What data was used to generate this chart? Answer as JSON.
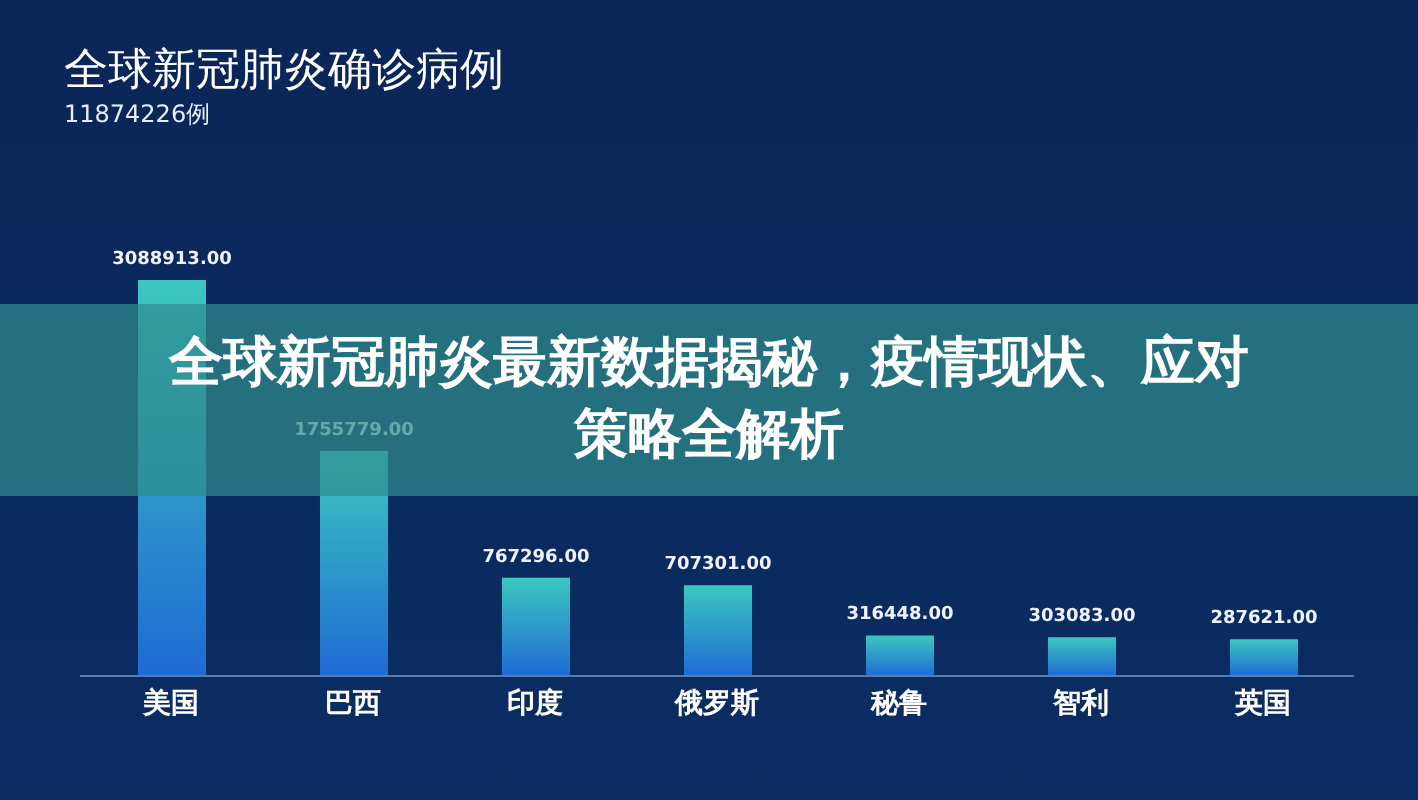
{
  "chart_data": {
    "type": "bar",
    "title": "全球新冠肺炎确诊病例",
    "subtitle": "11874226例",
    "annotations": [
      "全球新冠肺炎最新数据揭秘，疫情现状、应对策略全解析"
    ],
    "categories": [
      "美国",
      "巴西",
      "印度",
      "俄罗斯",
      "秘鲁",
      "智利",
      "英国"
    ],
    "values": [
      3088913,
      1755779,
      767296,
      707301,
      316448,
      303083,
      287621
    ],
    "value_labels": [
      "3088913.00",
      "1755779.00",
      "767296.00",
      "707301.00",
      "316448.00",
      "303083.00",
      "287621.00"
    ],
    "color": "#3cc8c0",
    "grid": false,
    "legend": false
  }
}
